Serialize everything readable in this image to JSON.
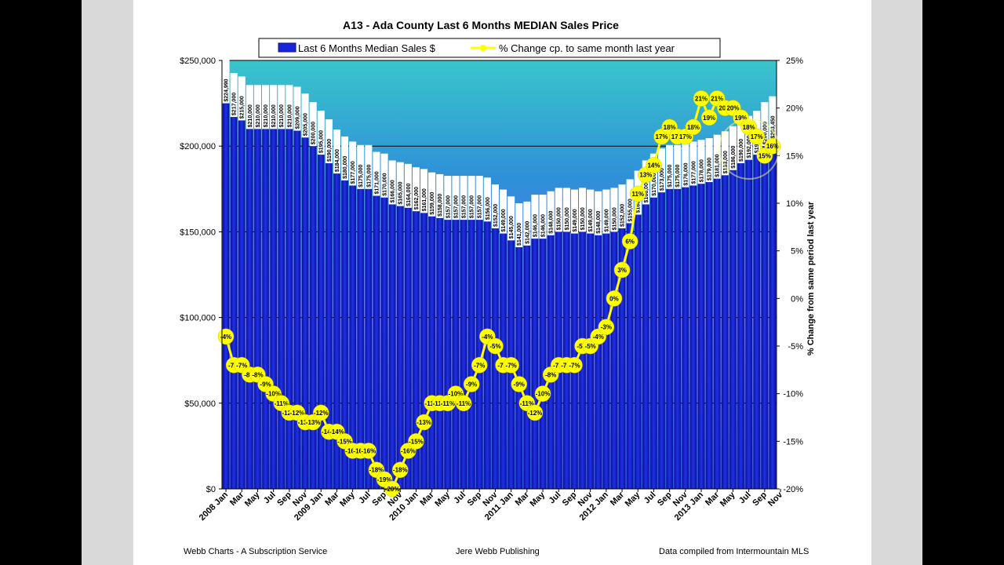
{
  "chart_data": {
    "type": "bar",
    "title": "A13 - Ada County Last 6 Months MEDIAN Sales Price",
    "legend": {
      "placement": "top",
      "bar_label": "Last 6 Months Median Sales $",
      "line_label": "% Change cp. to same month last year"
    },
    "y_left": {
      "range": [
        0,
        250000
      ],
      "ticks": [
        "$250,000",
        "$200,000",
        "$150,000",
        "$100,000",
        "$50,000",
        "$0"
      ]
    },
    "y_right": {
      "label": "% Change from same period last year",
      "range": [
        -20,
        25
      ],
      "ticks": [
        "25%",
        "20%",
        "15%",
        "10%",
        "5%",
        "0%",
        "-5%",
        "-10%",
        "-15%",
        "-20%"
      ]
    },
    "x_tick_labels": [
      "2008 Jan",
      "Mar",
      "May",
      "Jul",
      "Sep",
      "Nov",
      "2009 Jan",
      "Mar",
      "May",
      "Jul",
      "Sep",
      "Nov",
      "2010 Jan",
      "Mar",
      "May",
      "Jul",
      "Sep",
      "Nov",
      "2011 Jan",
      "Mar",
      "May",
      "Jul",
      "Sep",
      "Nov",
      "2012 Jan",
      "Mar",
      "May",
      "Jul",
      "Sep",
      "Nov",
      "2013 Jan",
      "Mar",
      "May",
      "Jul",
      "Sep",
      "Nov"
    ],
    "grid": true,
    "series": [
      {
        "name": "Last 6 Months Median Sales $",
        "type": "bar",
        "values": [
          224990,
          217000,
          215000,
          210000,
          210000,
          210000,
          210000,
          210000,
          210000,
          209000,
          205000,
          200000,
          195000,
          190000,
          184000,
          180000,
          177000,
          175000,
          175000,
          171000,
          170000,
          166000,
          165000,
          164000,
          162000,
          161000,
          159000,
          158000,
          157000,
          157000,
          157000,
          157000,
          157000,
          156000,
          152000,
          149000,
          145000,
          141000,
          142000,
          146000,
          146000,
          148000,
          150000,
          150000,
          149000,
          150000,
          149000,
          148000,
          149000,
          150000,
          152000,
          155000,
          160000,
          166000,
          170000,
          173000,
          175000,
          175000,
          176000,
          177000,
          178000,
          179000,
          181000,
          183000,
          186000,
          190000,
          192000,
          195000,
          200000,
          203450
        ]
      },
      {
        "name": "% Change cp. to same month last year",
        "type": "line",
        "values": [
          -4,
          -7,
          -7,
          -8,
          -8,
          -9,
          -10,
          -11,
          -12,
          -12,
          -13,
          -13,
          -12,
          -14,
          -14,
          -15,
          -16,
          -16,
          -16,
          -18,
          -19,
          -20,
          -18,
          -16,
          -15,
          -13,
          -11,
          -11,
          -11,
          -10,
          -11,
          -9,
          -7,
          -4,
          -5,
          -7,
          -7,
          -9,
          -11,
          -12,
          -10,
          -8,
          -7,
          -7,
          -7,
          -5,
          -5,
          -4,
          -3,
          0,
          3,
          6,
          11,
          13,
          14,
          17,
          18,
          17,
          17,
          18,
          21,
          19,
          21,
          20,
          20,
          19,
          18,
          17,
          15,
          16
        ]
      }
    ]
  },
  "footer": {
    "left": "Webb Charts - A Subscription Service",
    "center": "Jere Webb Publishing",
    "right": "Data compiled from Intermountain MLS"
  },
  "colors": {
    "bar": "#1a25d8",
    "bar_edge": "#0a0f88",
    "line": "#ffff00",
    "line_marker": "#ffff00",
    "plot_bg_top": "#36b8c8",
    "plot_bg_bottom": "#2a5fe0"
  }
}
